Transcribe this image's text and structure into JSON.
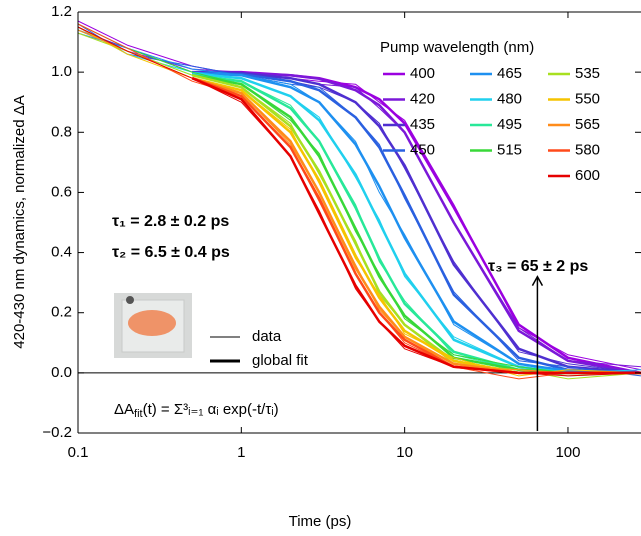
{
  "chart_data": {
    "type": "line",
    "log_x": true,
    "xlabel": "Time (ps)",
    "ylabel": "420-430 nm dynamics, normalized ΔA",
    "xlim": [
      0.1,
      280
    ],
    "ylim": [
      -0.2,
      1.2
    ],
    "xticks": [
      0.1,
      1,
      10,
      100
    ],
    "yticks": [
      {
        "value": -0.2,
        "label": "−0.2"
      },
      {
        "value": 0,
        "label": "0.0"
      },
      0.2,
      0.4,
      0.6,
      0.8,
      {
        "value": 1,
        "label": "1.0"
      },
      1.2
    ],
    "legend_title": "Pump wavelength (nm)",
    "legend_styles": {
      "data": "data",
      "fit": "global fit"
    },
    "annotations": {
      "tau1": "τ₁ = 2.8 ± 0.2 ps",
      "tau2": "τ₂ = 6.5 ± 0.4 ps",
      "tau3": {
        "text": "τ₃ = 65 ± 2 ps",
        "at": 65
      },
      "formula": {
        "main": "ΔA",
        "sub": "fit",
        "rest": "(t) = Σ³ᵢ₌₁ αᵢ exp(-t/τᵢ)"
      }
    },
    "x": [
      0.1,
      0.2,
      0.5,
      1,
      2,
      3,
      5,
      7,
      10,
      20,
      50,
      100,
      280
    ],
    "series": [
      {
        "name": "400",
        "color": "#9b00e0",
        "values": [
          1.17,
          1.09,
          1.02,
          0.99,
          0.98,
          0.97,
          0.96,
          0.9,
          0.84,
          0.56,
          0.15,
          0.06,
          0.01
        ],
        "fit": [
          null,
          null,
          1.0,
          1.0,
          0.99,
          0.98,
          0.95,
          0.91,
          0.83,
          0.55,
          0.16,
          0.05,
          0
        ]
      },
      {
        "name": "420",
        "color": "#7b18d8",
        "values": [
          1.15,
          1.07,
          1.01,
          1.0,
          0.98,
          0.96,
          0.95,
          0.88,
          0.8,
          0.5,
          0.15,
          0.04,
          0.02
        ],
        "fit": [
          null,
          null,
          0.999,
          0.997,
          0.99,
          0.978,
          0.94,
          0.89,
          0.8,
          0.5,
          0.14,
          0.04,
          0
        ]
      },
      {
        "name": "435",
        "color": "#4f2fd0",
        "values": [
          1.14,
          1.08,
          1.0,
          1.0,
          0.97,
          0.95,
          0.9,
          0.83,
          0.68,
          0.37,
          0.07,
          0.03,
          0
        ],
        "fit": [
          null,
          null,
          0.999,
          0.996,
          0.98,
          0.96,
          0.9,
          0.82,
          0.69,
          0.36,
          0.08,
          0.02,
          0
        ]
      },
      {
        "name": "450",
        "color": "#2a60e0",
        "values": [
          1.16,
          1.06,
          1.02,
          0.99,
          0.96,
          0.95,
          0.85,
          0.76,
          0.58,
          0.27,
          0.04,
          0.02,
          -0.01
        ],
        "fit": [
          null,
          null,
          0.998,
          0.993,
          0.97,
          0.94,
          0.85,
          0.75,
          0.59,
          0.26,
          0.05,
          0.01,
          0
        ]
      },
      {
        "name": "465",
        "color": "#1e90f0",
        "values": [
          1.13,
          1.08,
          1.01,
          0.99,
          0.96,
          0.9,
          0.77,
          0.6,
          0.46,
          0.16,
          0.03,
          0.01,
          0
        ],
        "fit": [
          null,
          null,
          0.997,
          0.99,
          0.95,
          0.9,
          0.76,
          0.62,
          0.45,
          0.17,
          0.03,
          0.005,
          0
        ]
      },
      {
        "name": "480",
        "color": "#20d0ee",
        "values": [
          1.15,
          1.06,
          1.0,
          0.98,
          0.92,
          0.85,
          0.65,
          0.51,
          0.32,
          0.12,
          0.02,
          0,
          0.01
        ],
        "fit": [
          null,
          null,
          0.995,
          0.98,
          0.92,
          0.84,
          0.66,
          0.5,
          0.33,
          0.11,
          0.02,
          0,
          0
        ]
      },
      {
        "name": "495",
        "color": "#28e898",
        "values": [
          1.14,
          1.07,
          0.99,
          0.97,
          0.89,
          0.77,
          0.56,
          0.37,
          0.24,
          0.06,
          0.01,
          -0.01,
          0
        ],
        "fit": [
          null,
          null,
          0.99,
          0.97,
          0.88,
          0.77,
          0.55,
          0.38,
          0.23,
          0.07,
          0.01,
          0,
          0
        ]
      },
      {
        "name": "515",
        "color": "#38d838",
        "values": [
          1.16,
          1.08,
          1.0,
          0.96,
          0.84,
          0.73,
          0.47,
          0.33,
          0.18,
          0.06,
          0.02,
          0,
          0
        ],
        "fit": [
          null,
          null,
          0.99,
          0.96,
          0.85,
          0.72,
          0.48,
          0.32,
          0.19,
          0.05,
          0.01,
          0,
          0
        ]
      },
      {
        "name": "535",
        "color": "#a8e020",
        "values": [
          1.13,
          1.07,
          0.99,
          0.95,
          0.83,
          0.66,
          0.44,
          0.26,
          0.16,
          0.03,
          0.01,
          -0.02,
          0
        ],
        "fit": [
          null,
          null,
          0.99,
          0.95,
          0.82,
          0.67,
          0.43,
          0.27,
          0.16,
          0.04,
          0,
          0,
          0
        ]
      },
      {
        "name": "550",
        "color": "#f5c400",
        "values": [
          1.15,
          1.06,
          0.98,
          0.94,
          0.81,
          0.63,
          0.38,
          0.26,
          0.13,
          0.05,
          -0.01,
          0.01,
          0
        ],
        "fit": [
          null,
          null,
          0.98,
          0.94,
          0.8,
          0.64,
          0.39,
          0.25,
          0.14,
          0.04,
          0,
          0,
          0
        ]
      },
      {
        "name": "565",
        "color": "#ff8c1a",
        "values": [
          1.14,
          1.07,
          0.98,
          0.93,
          0.76,
          0.6,
          0.36,
          0.21,
          0.12,
          0.02,
          0.01,
          0,
          0
        ],
        "fit": [
          null,
          null,
          0.98,
          0.93,
          0.77,
          0.6,
          0.35,
          0.22,
          0.12,
          0.03,
          0,
          0,
          0
        ]
      },
      {
        "name": "580",
        "color": "#ff4a1a",
        "values": [
          1.16,
          1.08,
          0.97,
          0.92,
          0.75,
          0.57,
          0.33,
          0.2,
          0.1,
          0.02,
          -0.02,
          0,
          0
        ],
        "fit": [
          null,
          null,
          0.98,
          0.92,
          0.75,
          0.58,
          0.33,
          0.2,
          0.11,
          0.02,
          0,
          0,
          0
        ]
      },
      {
        "name": "600",
        "color": "#e60000",
        "values": [
          1.15,
          1.07,
          0.98,
          0.9,
          0.72,
          0.54,
          0.28,
          0.17,
          0.08,
          0.02,
          0,
          -0.01,
          0
        ],
        "fit": [
          null,
          null,
          0.98,
          0.91,
          0.72,
          0.53,
          0.29,
          0.17,
          0.09,
          0.02,
          0,
          0,
          0
        ]
      }
    ]
  }
}
